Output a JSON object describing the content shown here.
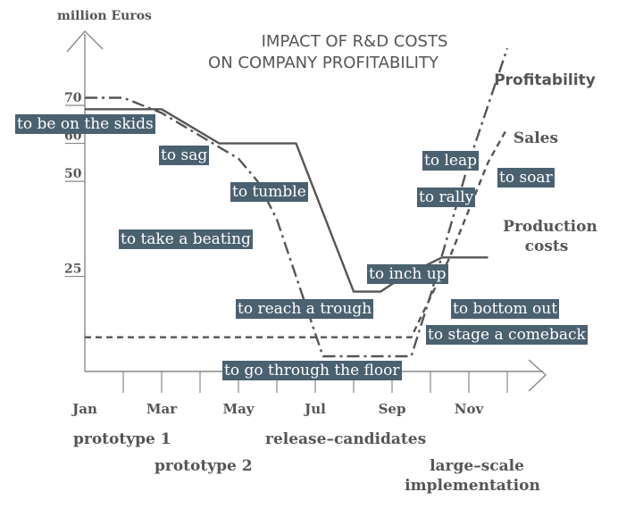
{
  "chart_data": {
    "type": "line",
    "title_lines": [
      "IMPACT OF R&D COSTS",
      "ON COMPANY PROFITABILITY"
    ],
    "ylabel": "million Euros",
    "ylim": [
      0,
      80
    ],
    "xlim": [
      0,
      11
    ],
    "y_ticks": [
      {
        "value": 25,
        "label": "25"
      },
      {
        "value": 50,
        "label": "50"
      },
      {
        "value": 60,
        "label": "60"
      },
      {
        "value": 70,
        "label": "70"
      }
    ],
    "x_ticks": [
      {
        "value": 0,
        "label": "Jan"
      },
      {
        "value": 2,
        "label": "Mar"
      },
      {
        "value": 4,
        "label": "May"
      },
      {
        "value": 6,
        "label": "Jul"
      },
      {
        "value": 8,
        "label": "Sep"
      },
      {
        "value": 10,
        "label": "Nov"
      }
    ],
    "minor_ticks": [
      1,
      3,
      5,
      7,
      9,
      11
    ],
    "series": [
      {
        "name": "Production costs",
        "label_lines": [
          "Production",
          "costs"
        ],
        "style": "solid",
        "x": [
          0,
          2,
          3.5,
          5.5,
          7,
          7.7,
          8.3,
          9.3,
          10.5
        ],
        "values": [
          69,
          69,
          60,
          60,
          21,
          21,
          25,
          30,
          30
        ]
      },
      {
        "name": "Profitability",
        "label_lines": [
          "Profitability"
        ],
        "style": "dashdot",
        "x": [
          0,
          1,
          2,
          4,
          4.5,
          5,
          5.8,
          6.2,
          8.5,
          9,
          10,
          11
        ],
        "values": [
          72,
          72,
          68,
          56,
          50,
          40,
          16,
          4,
          4,
          20,
          55,
          85
        ]
      },
      {
        "name": "Sales",
        "label_lines": [
          "Sales"
        ],
        "style": "dashed",
        "x": [
          0,
          8.5,
          9.5,
          10.5,
          11
        ],
        "values": [
          9,
          9,
          30,
          55,
          64
        ]
      }
    ],
    "phase_labels": [
      "prototype 1",
      "prototype 2",
      "release–candidates",
      "large–scale",
      "implementation"
    ],
    "annotations": [
      "to be on the skids",
      "to sag",
      "to tumble",
      "to take a beating",
      "to reach a trough",
      "to go through the floor",
      "to inch up",
      "to leap",
      "to soar",
      "to rally",
      "to bottom out",
      "to stage a comeback"
    ]
  },
  "colors": {
    "line": "#555555",
    "axis": "#888888",
    "text": "#555555",
    "annotation_bg": "#4a6170",
    "annotation_text": "#ffffff"
  }
}
